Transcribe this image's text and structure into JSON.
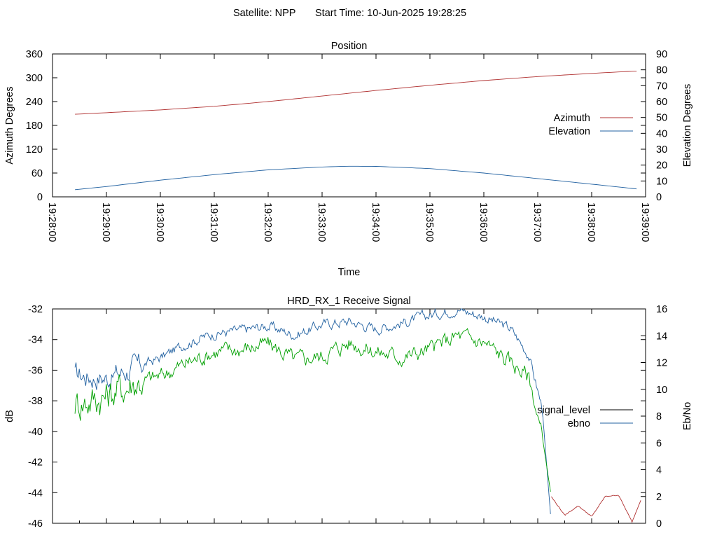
{
  "header": {
    "satellite": "Satellite: NPP",
    "start_time": "Start Time: 10-Jun-2025 19:28:25"
  },
  "chart_data": [
    {
      "type": "line",
      "title": "Position",
      "xlabel": "Time",
      "ylabel": "Azimuth Degrees",
      "y2label": "Elevation Degrees",
      "xlim": [
        "19:28:00",
        "19:39:00"
      ],
      "xticks": [
        "19:28:00",
        "19:29:00",
        "19:30:00",
        "19:31:00",
        "19:32:00",
        "19:33:00",
        "19:34:00",
        "19:35:00",
        "19:36:00",
        "19:37:00",
        "19:38:00",
        "19:39:00"
      ],
      "ylim": [
        0,
        360
      ],
      "yticks": [
        "0",
        "60",
        "120",
        "180",
        "240",
        "300",
        "360"
      ],
      "y2lim": [
        0,
        90
      ],
      "y2ticks": [
        "0",
        "10",
        "20",
        "30",
        "40",
        "50",
        "60",
        "70",
        "80",
        "90"
      ],
      "legend_position": "right",
      "series": [
        {
          "name": "Azimuth",
          "axis": "y",
          "color": "#b03030",
          "x": [
            "19:28:25",
            "19:29:00",
            "19:30:00",
            "19:31:00",
            "19:32:00",
            "19:33:00",
            "19:34:00",
            "19:35:00",
            "19:36:00",
            "19:37:00",
            "19:38:00",
            "19:38:50"
          ],
          "values": [
            208,
            212,
            219,
            228,
            240,
            254,
            268,
            281,
            293,
            303,
            311,
            317
          ]
        },
        {
          "name": "Elevation",
          "axis": "y2",
          "color": "#2060a0",
          "x": [
            "19:28:25",
            "19:29:00",
            "19:30:00",
            "19:31:00",
            "19:32:00",
            "19:33:00",
            "19:33:30",
            "19:34:00",
            "19:35:00",
            "19:36:00",
            "19:37:00",
            "19:38:00",
            "19:38:50"
          ],
          "values": [
            4.5,
            6.5,
            10.5,
            14,
            17,
            18.8,
            19.3,
            19.2,
            17.8,
            15,
            11.5,
            8,
            5
          ]
        }
      ]
    },
    {
      "type": "line",
      "title": "HRD_RX_1 Receive Signal",
      "ylabel": "dB",
      "y2label": "Eb/No",
      "xlim": [
        "19:28:00",
        "19:39:00"
      ],
      "ylim": [
        -46,
        -32
      ],
      "yticks": [
        "-32",
        "-34",
        "-36",
        "-38",
        "-40",
        "-42",
        "-44",
        "-46"
      ],
      "y2lim": [
        0,
        16
      ],
      "y2ticks": [
        "0",
        "2",
        "4",
        "6",
        "8",
        "10",
        "12",
        "14",
        "16"
      ],
      "legend_position": "right",
      "series": [
        {
          "name": "signal_level",
          "axis": "y",
          "legend_color": "#000000",
          "color": "#2060a0",
          "x": [
            "19:28:25",
            "19:29:00",
            "19:30:00",
            "19:30:30",
            "19:31:00",
            "19:31:30",
            "19:32:00",
            "19:32:30",
            "19:33:00",
            "19:33:30",
            "19:34:00",
            "19:34:30",
            "19:35:00",
            "19:35:30",
            "19:36:00",
            "19:36:30",
            "19:36:50",
            "19:37:05",
            "19:37:15"
          ],
          "values": [
            -36.3,
            -36.5,
            -35.2,
            -34.2,
            -33.6,
            -33.4,
            -33.1,
            -33.7,
            -33.0,
            -32.8,
            -33.3,
            -32.9,
            -32.4,
            -32.0,
            -32.5,
            -33.3,
            -35.0,
            -38.5,
            -46.0
          ]
        },
        {
          "name": "ebno",
          "axis": "y2",
          "legend_color": "#2060a0",
          "color": "#00a000",
          "x": [
            "19:28:25",
            "19:29:00",
            "19:29:30",
            "19:30:00",
            "19:30:30",
            "19:31:00",
            "19:31:30",
            "19:32:00",
            "19:32:30",
            "19:33:00",
            "19:33:30",
            "19:34:00",
            "19:34:30",
            "19:35:00",
            "19:35:30",
            "19:36:00",
            "19:36:30",
            "19:36:50",
            "19:37:05",
            "19:37:15"
          ],
          "values": [
            9.0,
            9.5,
            10.5,
            11.0,
            12.0,
            12.8,
            13.0,
            13.4,
            12.2,
            12.5,
            13.5,
            12.8,
            12.4,
            13.0,
            14.0,
            13.5,
            12.0,
            11.0,
            6.5,
            2.0
          ]
        },
        {
          "name": "",
          "axis": "y2",
          "color": "#b03030",
          "x": [
            "19:37:15",
            "19:37:30",
            "19:37:45",
            "19:38:00",
            "19:38:15",
            "19:38:30",
            "19:38:45",
            "19:38:55"
          ],
          "values": [
            2.0,
            0.6,
            1.3,
            0.5,
            2.0,
            2.1,
            0.1,
            1.8
          ]
        }
      ]
    }
  ]
}
